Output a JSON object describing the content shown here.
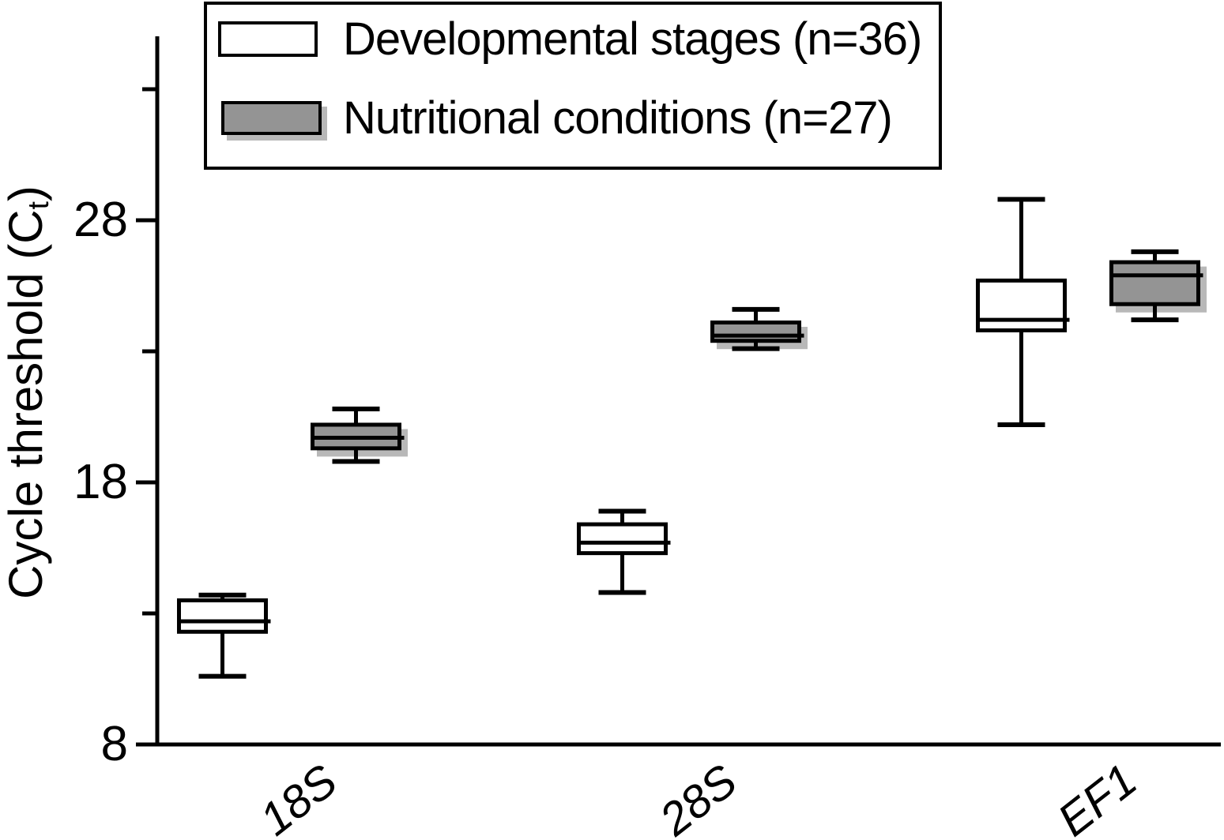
{
  "chart_data": {
    "type": "boxplot",
    "title": "",
    "xlabel": "",
    "ylabel": "Cycle threshold (Ct)",
    "ylabel_parts": {
      "pre": "Cycle threshold (C",
      "sub": "t",
      "post": ")"
    },
    "categories": [
      "18S",
      "28S",
      "EF1"
    ],
    "y_axis": {
      "range": [
        8,
        35
      ],
      "major_ticks": [
        28,
        18,
        8
      ],
      "major_tick_labels": [
        "28",
        "18",
        "8"
      ],
      "minor_ticks": [
        33,
        23,
        13
      ]
    },
    "grid": "off",
    "legend_position": "top-left",
    "series": [
      {
        "name": "Developmental stages (n=36)",
        "fill": "#ffffff",
        "boxes": [
          {
            "category": "18S",
            "whisker_low": 10.6,
            "q1": 12.3,
            "median": 12.7,
            "q3": 13.5,
            "whisker_high": 13.7
          },
          {
            "category": "28S",
            "whisker_low": 13.8,
            "q1": 15.3,
            "median": 15.7,
            "q3": 16.4,
            "whisker_high": 16.9
          },
          {
            "category": "EF1",
            "whisker_low": 20.2,
            "q1": 23.8,
            "median": 24.2,
            "q3": 25.7,
            "whisker_high": 28.8
          }
        ]
      },
      {
        "name": "Nutritional conditions (n=27)",
        "fill": "#949494",
        "boxes": [
          {
            "category": "18S",
            "whisker_low": 18.8,
            "q1": 19.3,
            "median": 19.7,
            "q3": 20.2,
            "whisker_high": 20.8
          },
          {
            "category": "28S",
            "whisker_low": 23.1,
            "q1": 23.4,
            "median": 23.6,
            "q3": 24.1,
            "whisker_high": 24.6
          },
          {
            "category": "EF1",
            "whisker_low": 24.2,
            "q1": 24.8,
            "median": 25.9,
            "q3": 26.4,
            "whisker_high": 26.8
          }
        ]
      }
    ],
    "colors": {
      "stroke": "#000000",
      "white_box_fill": "#ffffff",
      "gray_box_fill": "#949494",
      "shadow": "#b8b8b8"
    }
  }
}
